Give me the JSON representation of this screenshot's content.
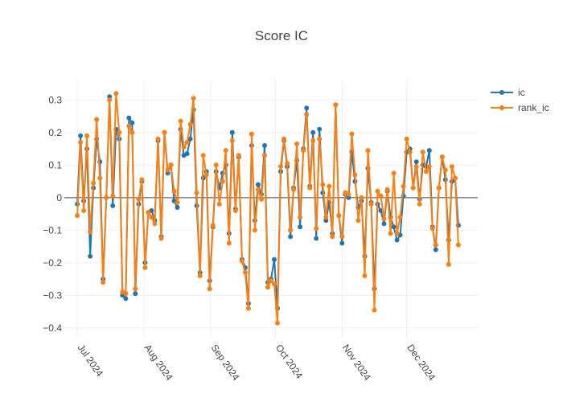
{
  "chart_data": {
    "type": "line",
    "title": "Score IC",
    "xlabel": "",
    "ylabel": "",
    "x_range": [
      "2024-06-25",
      "2025-01-03"
    ],
    "ylim": [
      -0.43,
      0.36
    ],
    "y_ticks": [
      0.3,
      0.2,
      0.1,
      0,
      -0.1,
      -0.2,
      -0.3,
      -0.4
    ],
    "y_tick_labels": [
      "0.3",
      "0.2",
      "0.1",
      "0",
      "−0.1",
      "−0.2",
      "−0.3",
      "−0.4"
    ],
    "x_ticks": [
      {
        "date": "2024-07-01",
        "label": "Jul 2024"
      },
      {
        "date": "2024-08-01",
        "label": "Aug 2024"
      },
      {
        "date": "2024-09-01",
        "label": "Sep 2024"
      },
      {
        "date": "2024-10-01",
        "label": "Oct 2024"
      },
      {
        "date": "2024-11-01",
        "label": "Nov 2024"
      },
      {
        "date": "2024-12-01",
        "label": "Dec 2024"
      }
    ],
    "grid": true,
    "zero_line": true,
    "legend_position": "top-right",
    "series": [
      {
        "name": "ic",
        "color": "#1f77b4",
        "start_date": "2024-07-01",
        "values": [
          -0.02,
          0.19,
          -0.01,
          0.15,
          -0.18,
          0.03,
          0.18,
          0.11,
          -0.25,
          0.0,
          0.31,
          -0.025,
          0.21,
          0.18,
          -0.3,
          -0.31,
          0.245,
          0.23,
          -0.295,
          -0.02,
          0.05,
          -0.2,
          -0.045,
          -0.04,
          -0.07,
          0.175,
          -0.12,
          0.2,
          0.075,
          0.1,
          -0.01,
          -0.03,
          0.21,
          0.13,
          0.135,
          0.18,
          0.27,
          -0.025,
          -0.23,
          0.06,
          0.08,
          -0.255,
          -0.09,
          0.08,
          0.03,
          0.075,
          0.1,
          -0.11,
          0.2,
          -0.035,
          0.125,
          -0.19,
          -0.215,
          -0.325,
          0.16,
          -0.07,
          0.04,
          0.01,
          0.16,
          -0.26,
          -0.25,
          -0.19,
          -0.34,
          0.08,
          0.175,
          0.095,
          -0.12,
          0.03,
          0.115,
          -0.09,
          0.15,
          0.275,
          0.035,
          0.2,
          -0.125,
          0.21,
          0.015,
          -0.07,
          -0.015,
          -0.11,
          0.285,
          -0.055,
          -0.14,
          0.01,
          0.0,
          0.14,
          0.05,
          -0.03,
          -0.01,
          -0.18,
          0.09,
          -0.015,
          -0.28,
          -0.02,
          -0.04,
          -0.08,
          0.02,
          -0.06,
          -0.09,
          -0.13,
          -0.115,
          0.005,
          0.14,
          0.15,
          0.03,
          0.11,
          -0.005,
          0.1,
          0.095,
          0.145,
          -0.09,
          -0.16,
          0.03,
          0.125,
          0.055,
          -0.13,
          0.05,
          0.06,
          -0.085
        ],
        "value_precision": 0.005
      },
      {
        "name": "rank_ic",
        "color": "#ff7f0e",
        "start_date": "2024-07-01",
        "values": [
          -0.055,
          0.17,
          -0.04,
          0.19,
          -0.105,
          0.045,
          0.24,
          0.06,
          -0.26,
          0.0,
          0.3,
          0.005,
          0.32,
          0.2,
          -0.29,
          -0.295,
          0.22,
          0.2,
          -0.28,
          -0.005,
          0.055,
          -0.215,
          -0.045,
          -0.06,
          -0.08,
          0.18,
          -0.125,
          0.2,
          0.085,
          0.1,
          0.02,
          -0.015,
          0.235,
          0.155,
          0.17,
          0.225,
          0.305,
          0.015,
          -0.24,
          0.13,
          0.07,
          -0.28,
          -0.085,
          0.1,
          -0.02,
          0.05,
          0.145,
          -0.14,
          0.175,
          -0.04,
          0.13,
          -0.195,
          -0.23,
          -0.34,
          0.195,
          -0.1,
          0.025,
          -0.005,
          0.13,
          -0.275,
          -0.255,
          -0.265,
          -0.385,
          0.095,
          0.18,
          0.105,
          -0.1,
          0.025,
          0.165,
          -0.06,
          0.145,
          0.255,
          0.03,
          0.175,
          -0.095,
          0.18,
          0.04,
          -0.06,
          0.035,
          -0.12,
          0.285,
          -0.055,
          -0.12,
          0.015,
          0.01,
          0.195,
          0.07,
          -0.07,
          0.0,
          -0.24,
          0.145,
          -0.02,
          -0.345,
          0.02,
          0.005,
          -0.065,
          0.025,
          -0.11,
          0.075,
          -0.11,
          -0.06,
          0.035,
          0.18,
          0.14,
          0.03,
          0.095,
          -0.02,
          0.14,
          0.08,
          0.095,
          -0.095,
          -0.145,
          0.03,
          0.125,
          0.085,
          -0.205,
          0.095,
          0.06,
          -0.145
        ],
        "value_precision": 0.005
      }
    ]
  }
}
